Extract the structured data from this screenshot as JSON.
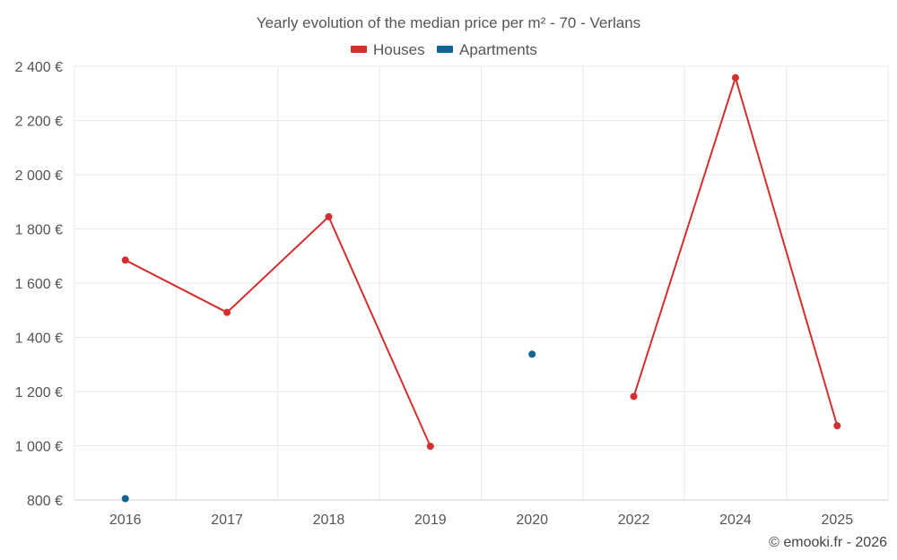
{
  "chart_data": {
    "type": "line",
    "title": "Yearly evolution of the median price per m² - 70 - Verlans",
    "categories": [
      "2016",
      "2017",
      "2018",
      "2019",
      "2020",
      "2022",
      "2024",
      "2025"
    ],
    "series": [
      {
        "name": "Houses",
        "color": "#d32f2f",
        "values": [
          1685,
          1492,
          1845,
          998,
          null,
          1182,
          2358,
          1074
        ]
      },
      {
        "name": "Apartments",
        "color": "#0b6694",
        "values": [
          805,
          null,
          null,
          null,
          1338,
          null,
          null,
          null
        ]
      }
    ],
    "ylim": [
      800,
      2400
    ],
    "yticks": [
      800,
      1000,
      1200,
      1400,
      1600,
      1800,
      2000,
      2200,
      2400
    ],
    "ytick_labels": [
      "800 €",
      "1 000 €",
      "1 200 €",
      "1 400 €",
      "1 600 €",
      "1 800 €",
      "2 000 €",
      "2 200 €",
      "2 400 €"
    ],
    "legend": "top-center",
    "grid": true,
    "xlabel": "",
    "ylabel": ""
  },
  "credit": "© emooki.fr - 2026"
}
